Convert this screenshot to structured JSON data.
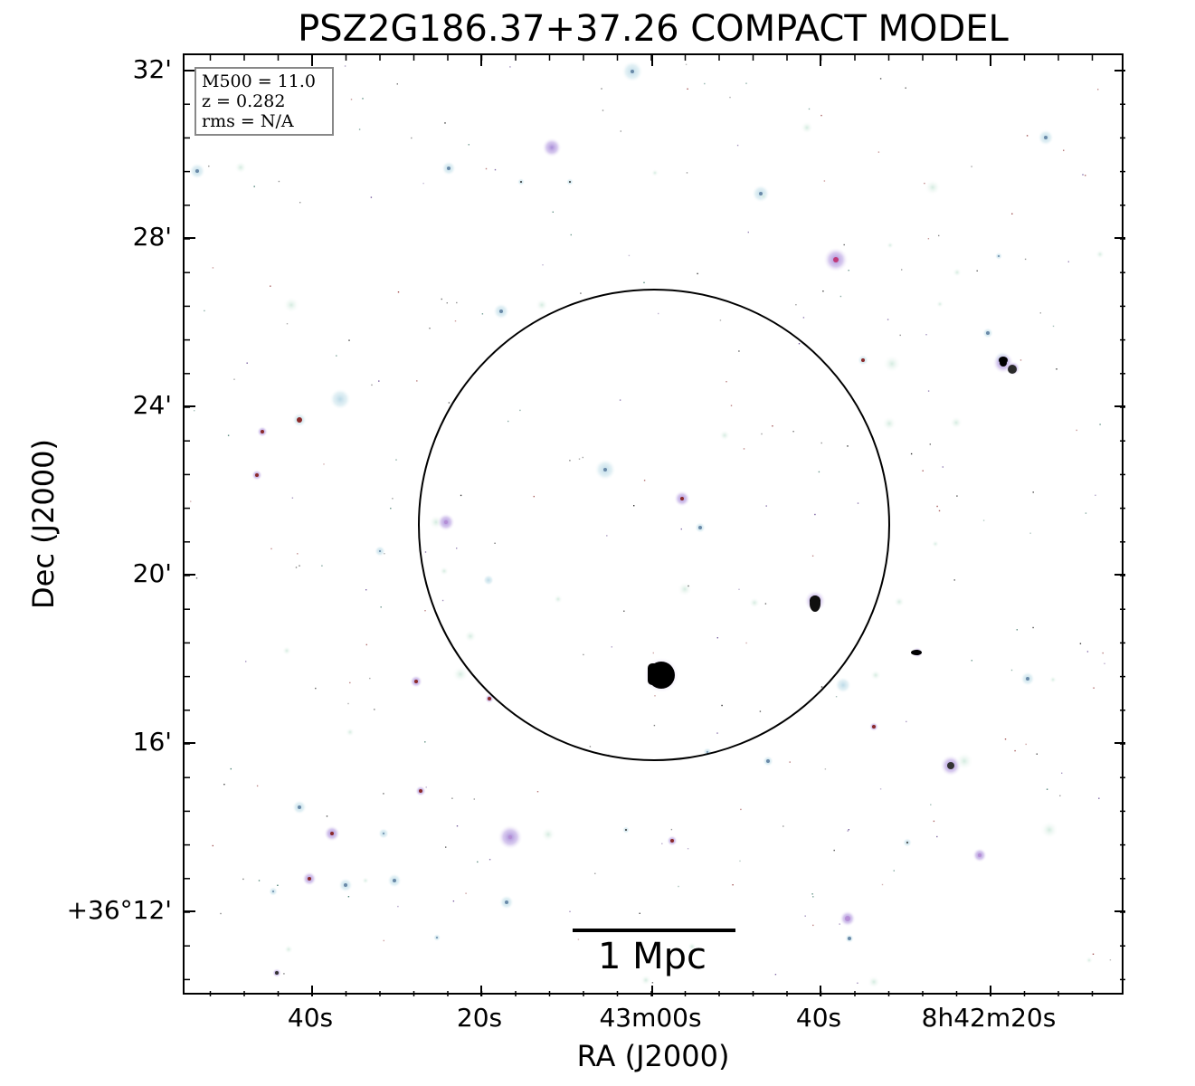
{
  "title": "PSZ2G186.37+37.26 COMPACT MODEL",
  "axes": {
    "xlabel": "RA (J2000)",
    "ylabel": "Dec (J2000)",
    "x_ticks": [
      "40s",
      "20s",
      "43m00s",
      "40s",
      "8h42m20s"
    ],
    "y_ticks": [
      "32'",
      "28'",
      "24'",
      "20'",
      "16'",
      "+36°12'"
    ]
  },
  "info": {
    "mass": "M500 = 11.0",
    "redshift": "z = 0.282",
    "rms": "rms = N/A"
  },
  "scale_bar": {
    "label": "1 Mpc"
  },
  "colors": {
    "background": "#ffffff",
    "frame": "#000000",
    "circle": "#000000",
    "source_halo_blue": "#cfe6ee",
    "source_halo_green": "#e2f2ea",
    "source_core_purple": "#b58fd6",
    "source_core_magenta": "#c03a7a",
    "source_core_dark": "#000000"
  }
}
